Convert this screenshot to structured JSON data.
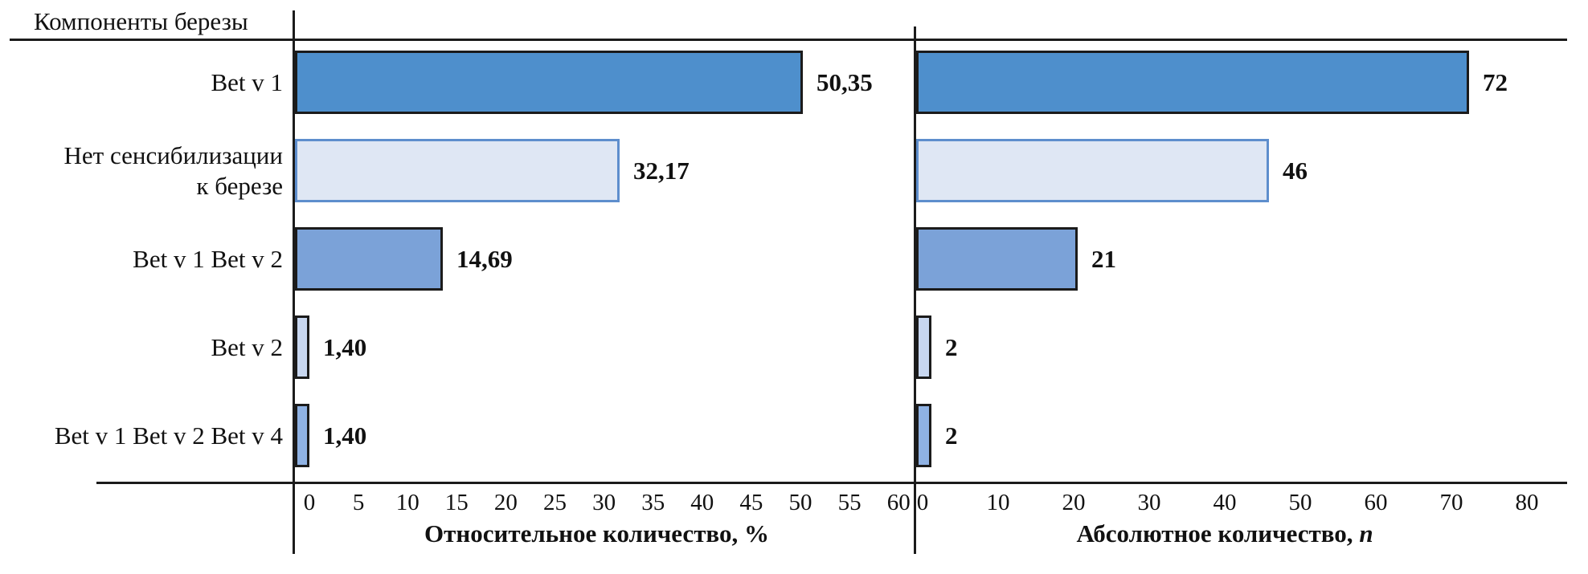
{
  "header": {
    "title": "Компоненты березы"
  },
  "colors": {
    "axis_line": "#1b1b1b",
    "text": "#111111",
    "background": "#ffffff"
  },
  "bar_styles": [
    {
      "fill": "#4e8fcc",
      "border": "#1b1b1b"
    },
    {
      "fill": "#dfe7f4",
      "border": "#5e8ecd"
    },
    {
      "fill": "#7ba2d8",
      "border": "#1b1b1b"
    },
    {
      "fill": "#c8d7f0",
      "border": "#1b1b1b"
    },
    {
      "fill": "#8fb2e3",
      "border": "#1b1b1b"
    }
  ],
  "chart_data": [
    {
      "type": "bar",
      "orientation": "horizontal",
      "title": "",
      "categories": [
        [
          "Bet v 1"
        ],
        [
          "Нет сенсибилизации",
          "к березе"
        ],
        [
          "Bet v 1 Bet v 2"
        ],
        [
          "Bet v 2"
        ],
        [
          "Bet v 1 Bet v 2 Bet v 4"
        ]
      ],
      "values": [
        50.35,
        32.17,
        14.69,
        1.4,
        1.4
      ],
      "data_labels": [
        "50,35",
        "32,17",
        "14,69",
        "1,40",
        "1,40"
      ],
      "xlabel": {
        "text": "Относительное количество, %",
        "italic_suffix": ""
      },
      "ylabel": "",
      "ticks": [
        0,
        5,
        10,
        15,
        20,
        25,
        30,
        35,
        40,
        45,
        50,
        55,
        60
      ],
      "xlim": [
        0,
        61.5
      ],
      "grid": false,
      "legend": "none"
    },
    {
      "type": "bar",
      "orientation": "horizontal",
      "title": "",
      "categories": [
        [
          "Bet v 1"
        ],
        [
          "Нет сенсибилизации",
          "к березе"
        ],
        [
          "Bet v 1 Bet v 2"
        ],
        [
          "Bet v 2"
        ],
        [
          "Bet v 1 Bet v 2 Bet v 4"
        ]
      ],
      "values": [
        72,
        46,
        21,
        2,
        2
      ],
      "data_labels": [
        "72",
        "46",
        "21",
        "2",
        "2"
      ],
      "xlabel": {
        "text": "Абсолютное количество, ",
        "italic_suffix": "n"
      },
      "ylabel": "",
      "ticks": [
        0,
        10,
        20,
        30,
        40,
        50,
        60,
        70,
        80
      ],
      "xlim": [
        0,
        85
      ],
      "grid": false,
      "legend": "none"
    }
  ]
}
